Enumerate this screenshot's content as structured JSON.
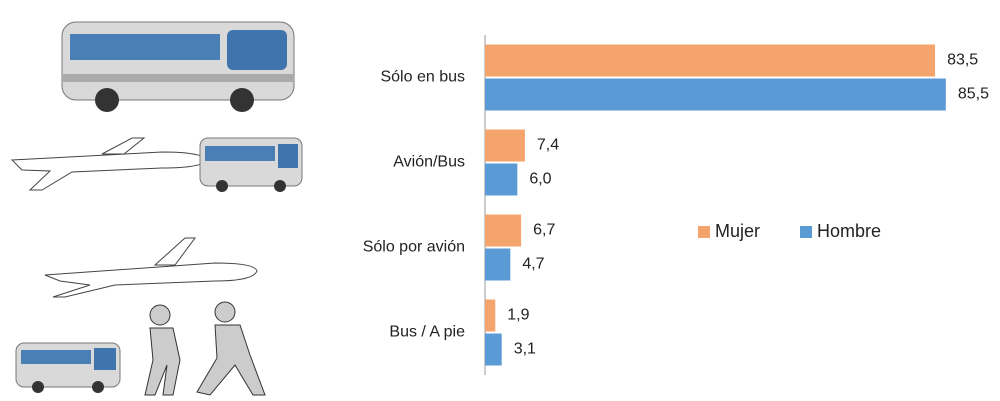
{
  "chart_data": {
    "type": "bar",
    "orientation": "horizontal",
    "categories": [
      "Sólo en bus",
      "Avión/Bus",
      "Sólo por avión",
      "Bus / A pie"
    ],
    "series": [
      {
        "name": "Mujer",
        "color": "#f4a46c",
        "values": [
          83.5,
          7.4,
          6.7,
          1.9
        ],
        "value_labels": [
          "83,5",
          "7,4",
          "6,7",
          "1,9"
        ]
      },
      {
        "name": "Hombre",
        "color": "#5b9bd5",
        "values": [
          85.5,
          6.0,
          4.7,
          3.1
        ],
        "value_labels": [
          "85,5",
          "6,0",
          "4,7",
          "3,1"
        ]
      }
    ],
    "legend": "right"
  }
}
